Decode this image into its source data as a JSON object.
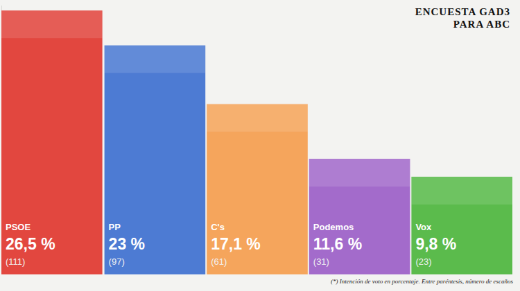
{
  "chart_data": {
    "type": "bar",
    "title": "ENCUESTA GAD3 PARA ABC",
    "note": "(*) Intención de voto en porcentaje. Entre paréntesis, número de escaños",
    "categories": [
      "PSOE",
      "PP",
      "C's",
      "Podemos",
      "Vox"
    ],
    "values": [
      26.5,
      23,
      17.1,
      11.6,
      9.8
    ],
    "value_labels": [
      "26,5 %",
      "23 %",
      "17,1 %",
      "11,6 %",
      "9,8 %"
    ],
    "seat_labels": [
      "(111)",
      "(97)",
      "(61)",
      "(31)",
      "(23)"
    ],
    "colors": [
      "#e2473f",
      "#4d7bd3",
      "#f5a55c",
      "#a36bcb",
      "#5bbb4c"
    ],
    "ylim": [
      0,
      27
    ],
    "grid": false,
    "tick_labels": false,
    "data_labels": true
  }
}
